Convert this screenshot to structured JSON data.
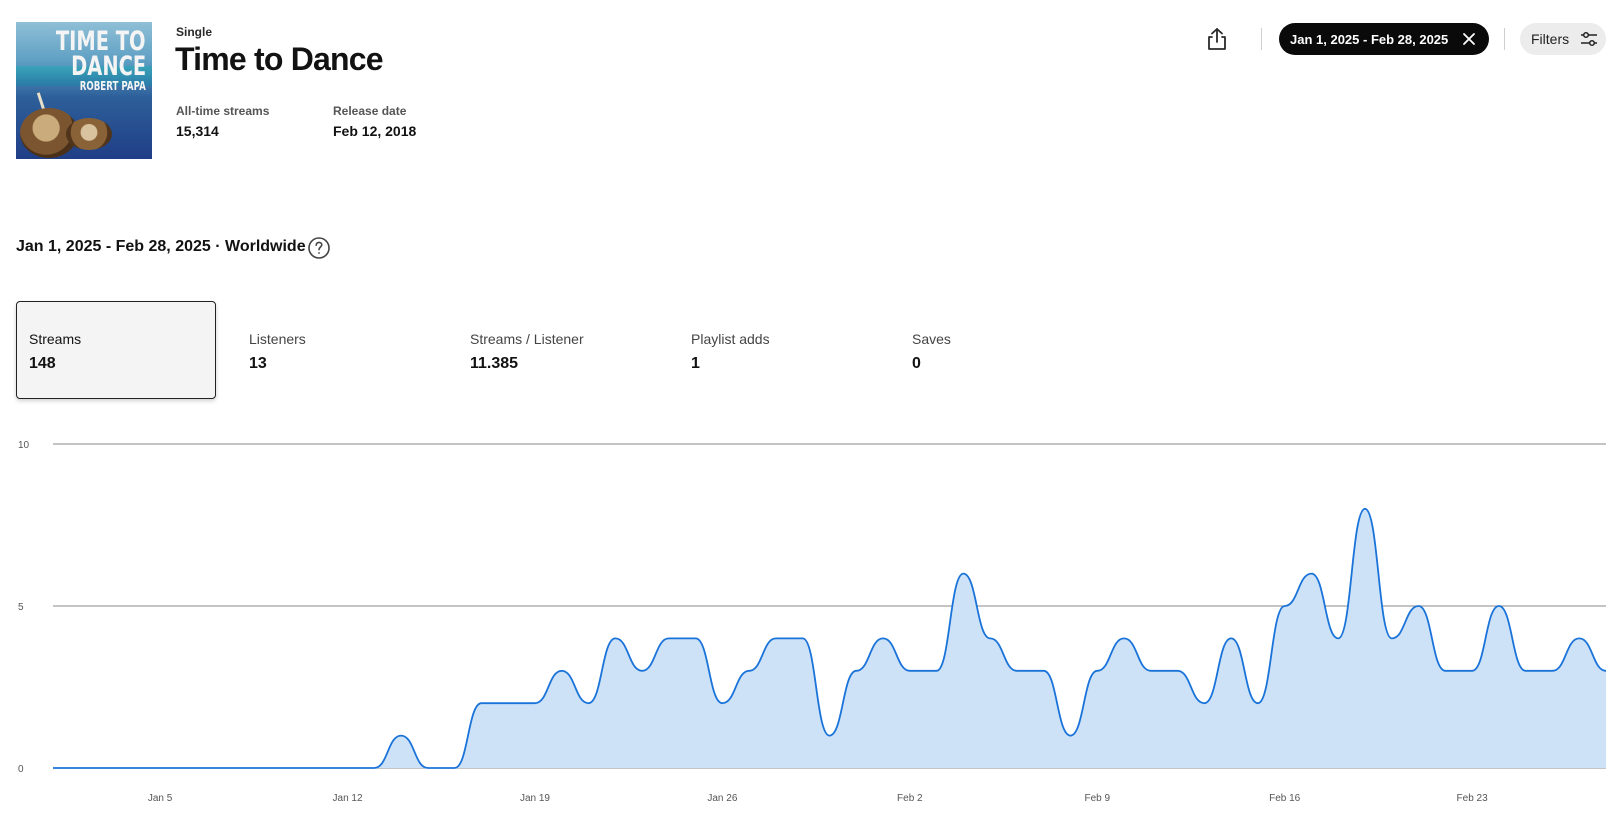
{
  "release": {
    "type_label": "Single",
    "title": "Time to Dance",
    "cover": {
      "line1": "TIME TO",
      "line2": "DANCE",
      "line3": "ROBERT PAPA"
    },
    "stats": [
      {
        "label": "All-time streams",
        "value": "15,314"
      },
      {
        "label": "Release date",
        "value": "Feb 12, 2018"
      }
    ]
  },
  "toolbar": {
    "share_icon": "share-icon",
    "date_chip_label": "Jan 1, 2025 - Feb 28, 2025",
    "filters_label": "Filters"
  },
  "range_heading": "Jan 1, 2025 - Feb 28, 2025 · Worldwide",
  "metrics": [
    {
      "label": "Streams",
      "value": "148",
      "selected": true
    },
    {
      "label": "Listeners",
      "value": "13",
      "selected": false
    },
    {
      "label": "Streams / Listener",
      "value": "11.385",
      "selected": false
    },
    {
      "label": "Playlist adds",
      "value": "1",
      "selected": false
    },
    {
      "label": "Saves",
      "value": "0",
      "selected": false
    }
  ],
  "colors": {
    "line": "#1a73d9",
    "fill": "#cde2f7",
    "grid": "#888888",
    "chip_bg": "#0a0a0a"
  },
  "chart_data": {
    "type": "area",
    "x_start": "2025-01-01",
    "x_end": "2025-02-28",
    "x_tick_labels": [
      "Jan 5",
      "Jan 12",
      "Jan 19",
      "Jan 26",
      "Feb 2",
      "Feb 9",
      "Feb 16",
      "Feb 23"
    ],
    "y_ticks": [
      0,
      5,
      10
    ],
    "ylim": [
      0,
      10
    ],
    "grid": true,
    "series": [
      {
        "values": [
          0,
          0,
          0,
          0,
          0,
          0,
          0,
          0,
          0,
          0,
          0,
          0,
          0,
          1,
          0,
          0,
          2,
          2,
          2,
          3,
          2,
          4,
          3,
          4,
          4,
          2,
          3,
          4,
          4,
          1,
          3,
          4,
          3,
          3,
          6,
          4,
          3,
          3,
          1,
          3,
          4,
          3,
          3,
          2,
          4,
          2,
          5,
          6,
          4,
          8,
          4,
          5,
          3,
          3,
          5,
          3,
          3,
          4,
          3
        ]
      }
    ]
  }
}
